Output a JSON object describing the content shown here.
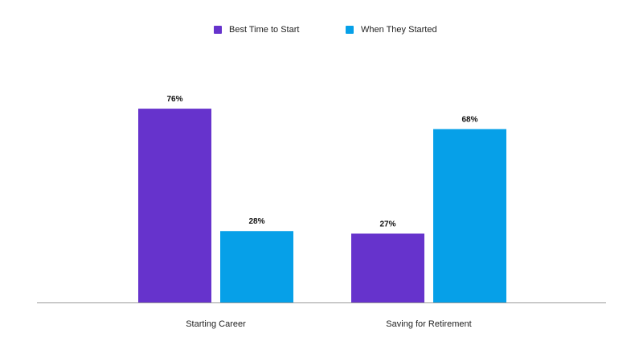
{
  "chart_data": {
    "type": "bar",
    "categories": [
      "Starting Career",
      "Saving for Retirement"
    ],
    "series": [
      {
        "name": "Best Time to Start",
        "values": [
          76,
          27
        ],
        "color": "#6633CC"
      },
      {
        "name": "When They Started",
        "values": [
          28,
          68
        ],
        "color": "#06A0E8"
      }
    ],
    "value_suffix": "%",
    "ylim": [
      0,
      100
    ],
    "title": "",
    "xlabel": "",
    "ylabel": "",
    "grid": false,
    "legend_position": "top-center"
  }
}
